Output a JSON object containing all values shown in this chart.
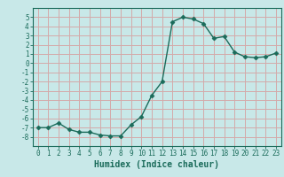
{
  "x": [
    0,
    1,
    2,
    3,
    4,
    5,
    6,
    7,
    8,
    9,
    10,
    11,
    12,
    13,
    14,
    15,
    16,
    17,
    18,
    19,
    20,
    21,
    22,
    23
  ],
  "y": [
    -7,
    -7,
    -6.5,
    -7.2,
    -7.5,
    -7.5,
    -7.8,
    -7.9,
    -7.9,
    -6.7,
    -5.8,
    -3.5,
    -2.0,
    4.5,
    5.0,
    4.8,
    4.3,
    2.7,
    2.9,
    1.2,
    0.7,
    0.6,
    0.7,
    1.1
  ],
  "bg_color": "#c8e8e8",
  "grid_color": "#d4aaaa",
  "line_color": "#1a6b5a",
  "marker_color": "#1a6b5a",
  "xlabel": "Humidex (Indice chaleur)",
  "ylim": [
    -9,
    6
  ],
  "xlim": [
    -0.5,
    23.5
  ],
  "yticks": [
    -8,
    -7,
    -6,
    -5,
    -4,
    -3,
    -2,
    -1,
    0,
    1,
    2,
    3,
    4,
    5
  ],
  "xticks": [
    0,
    1,
    2,
    3,
    4,
    5,
    6,
    7,
    8,
    9,
    10,
    11,
    12,
    13,
    14,
    15,
    16,
    17,
    18,
    19,
    20,
    21,
    22,
    23
  ],
  "tick_color": "#1a6b5a",
  "axis_color": "#1a6b5a",
  "tick_fontsize": 5.5,
  "xlabel_fontsize": 7,
  "line_width": 1.0,
  "marker_size": 2.5
}
